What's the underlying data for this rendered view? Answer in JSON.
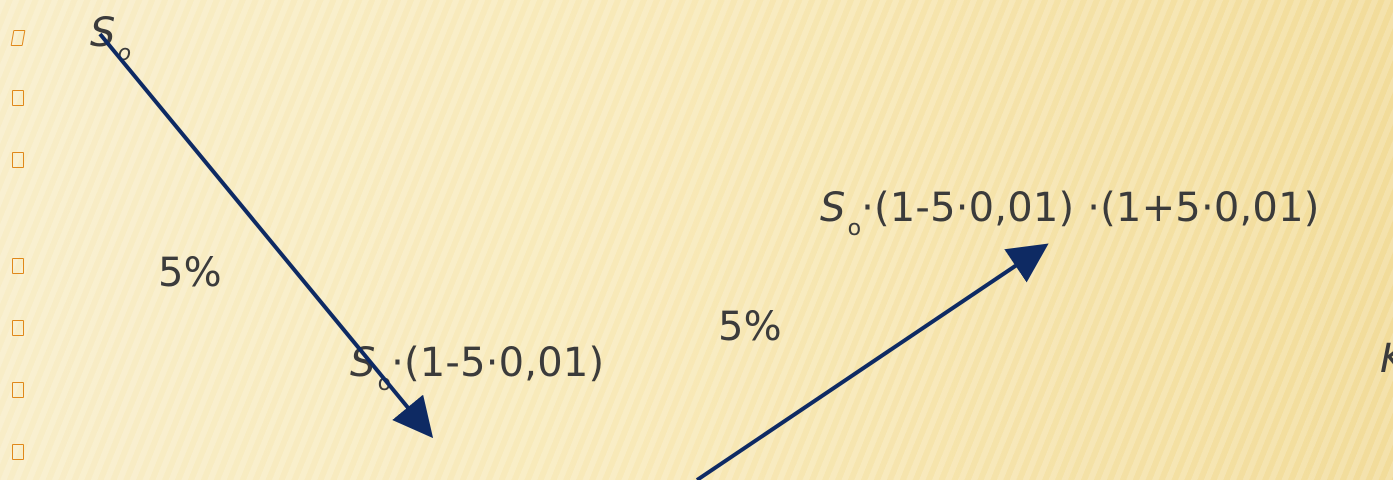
{
  "colors": {
    "background_start": "#f8edc7",
    "background_end": "#f2dc9a",
    "arrow": "#0e2a63",
    "bullet": "#e0881a",
    "text": "#3b3b3b"
  },
  "labels": {
    "s0_symbol": "S",
    "s0_subscript": "o",
    "percent_left": "5%",
    "mid_symbol": "S",
    "mid_subscript": "o",
    "mid_expression": "·(1-5·0,01)",
    "percent_right": "5%",
    "right_symbol": "S",
    "right_subscript": "o",
    "right_expression": "·(1-5·0,01) ·(1+5·0,01)",
    "edge_partial": "K"
  }
}
